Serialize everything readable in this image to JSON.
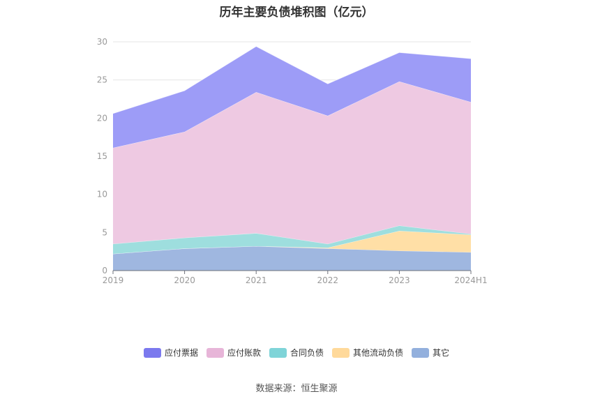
{
  "page": {
    "title": "历年主要负债堆积图（亿元）",
    "source": "数据来源：恒生聚源"
  },
  "chart_data": {
    "type": "area",
    "stacked": true,
    "title": "历年主要负债堆积图（亿元）",
    "x": [
      "2019",
      "2020",
      "2021",
      "2022",
      "2023",
      "2024H1"
    ],
    "ylim": [
      0,
      30
    ],
    "yticks": [
      "0",
      "5",
      "10",
      "15",
      "20",
      "25",
      "30"
    ],
    "grid": true,
    "legend_position": "bottom",
    "series": [
      {
        "name": "其它",
        "color": "#9fb7e0",
        "values": [
          2.2,
          2.9,
          3.2,
          2.9,
          2.6,
          2.4
        ]
      },
      {
        "name": "其他流动负债",
        "color": "#ffdfa6",
        "values": [
          0,
          0,
          0,
          0.1,
          2.6,
          2.3
        ]
      },
      {
        "name": "合同负债",
        "color": "#9edede",
        "values": [
          1.3,
          1.4,
          1.7,
          0.5,
          0.7,
          0.1
        ]
      },
      {
        "name": "应付账款",
        "color": "#eec9e2",
        "values": [
          12.6,
          13.9,
          18.5,
          16.8,
          18.9,
          17.3
        ]
      },
      {
        "name": "应付票据",
        "color": "#9d9cf7",
        "values": [
          4.5,
          5.4,
          6.0,
          4.2,
          3.8,
          5.7
        ]
      }
    ],
    "legend": [
      {
        "name": "应付票据",
        "color": "#7b79ee"
      },
      {
        "name": "应付账款",
        "color": "#e7b5d8"
      },
      {
        "name": "合同负债",
        "color": "#7fd4d8"
      },
      {
        "name": "其他流动负债",
        "color": "#ffd99a"
      },
      {
        "name": "其它",
        "color": "#93b0dd"
      }
    ]
  }
}
